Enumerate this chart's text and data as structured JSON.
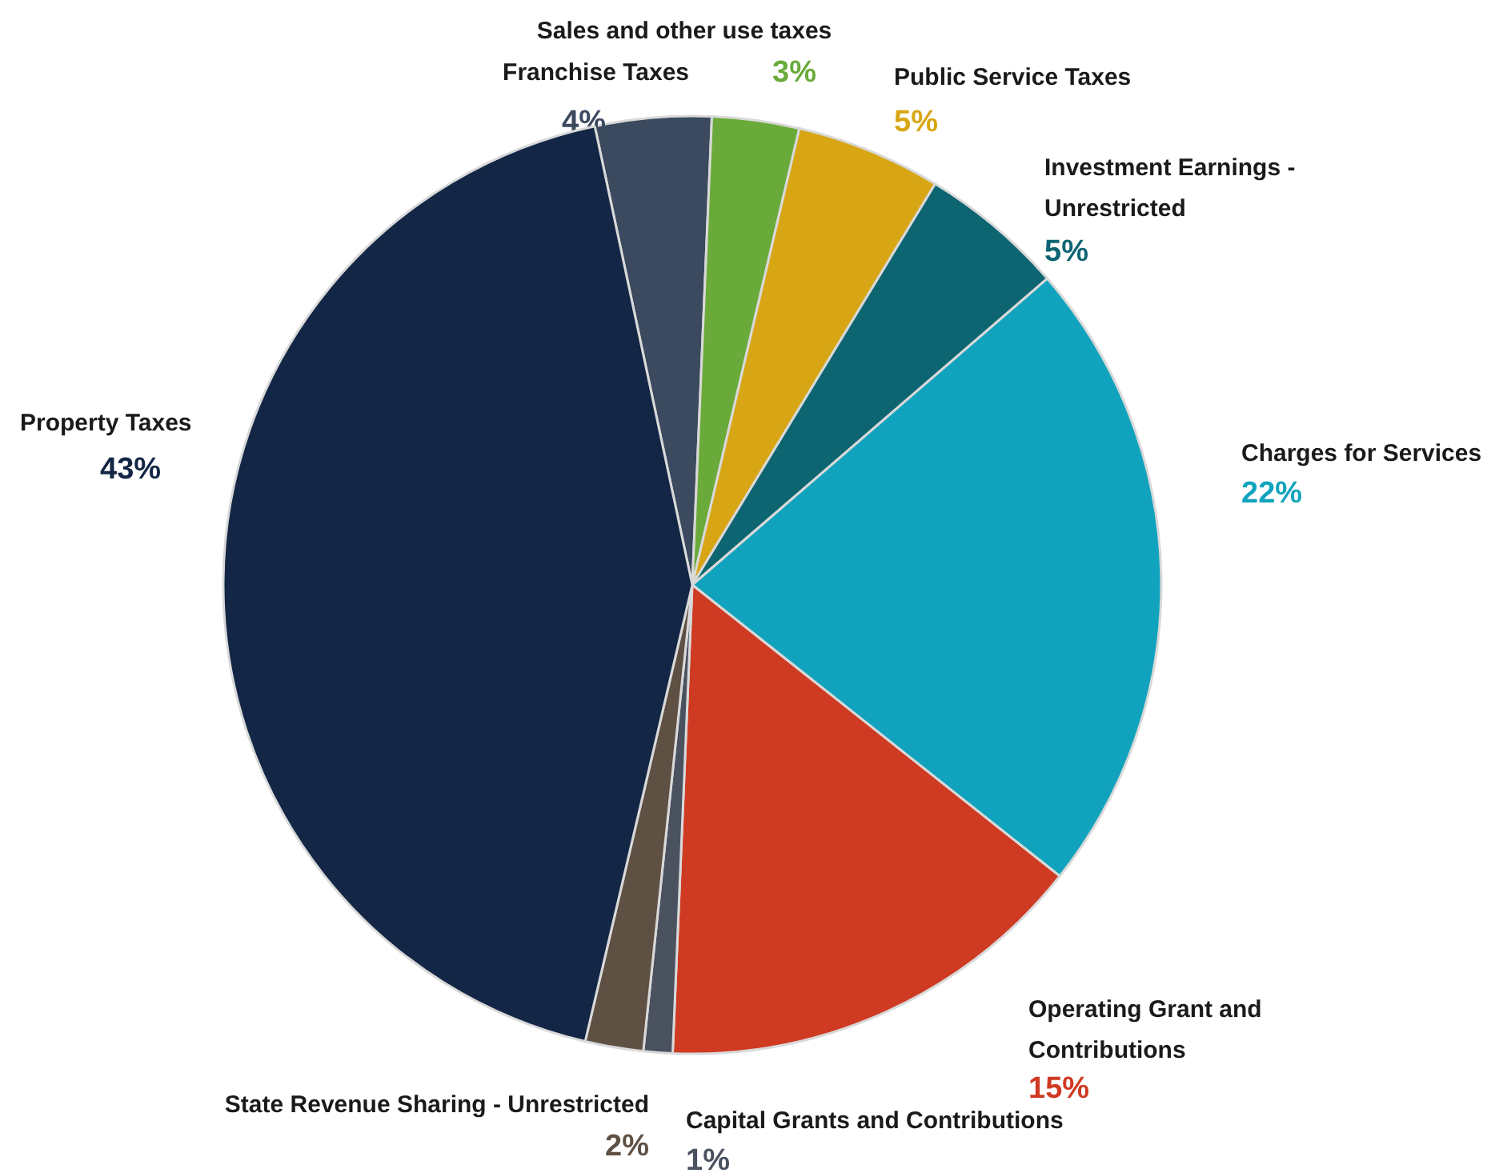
{
  "chart_data": {
    "type": "pie",
    "categories": [
      "Franchise Taxes",
      "Sales and other use taxes",
      "Public Service Taxes",
      "Investment Earnings - Unrestricted",
      "Charges for Services",
      "Operating Grant and Contributions",
      "Capital Grants and Contributions",
      "State Revenue Sharing - Unrestricted",
      "Property Taxes"
    ],
    "values": [
      4,
      3,
      5,
      5,
      22,
      15,
      1,
      2,
      43
    ],
    "colors": [
      "#3b4a5e",
      "#6aaa3a",
      "#d8a615",
      "#0e6572",
      "#11a3bd",
      "#cf3a22",
      "#4a5260",
      "#5f5044",
      "#132645"
    ],
    "value_labels": [
      "4%",
      "3%",
      "5%",
      "5%",
      "22%",
      "15%",
      "1%",
      "2%",
      "43%"
    ]
  }
}
